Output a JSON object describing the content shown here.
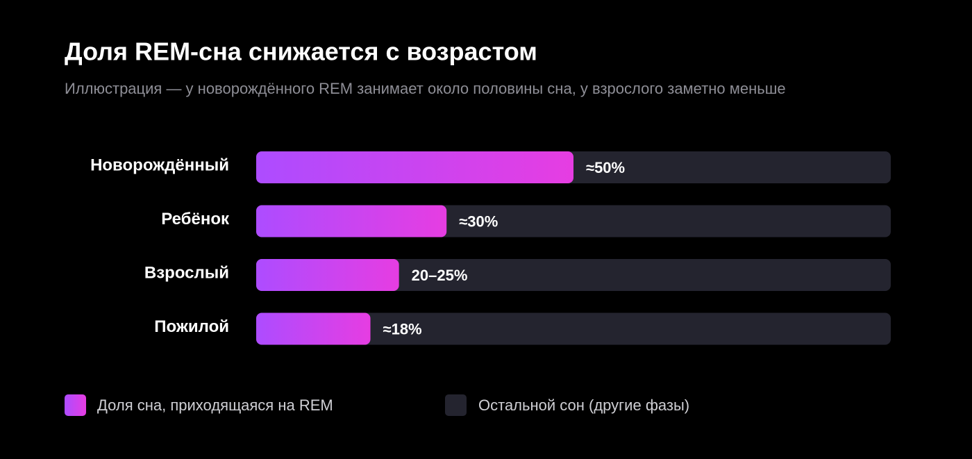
{
  "chart_data": {
    "type": "hbar",
    "title": "Доля REM-сна снижается с возрастом",
    "subtitle": "Иллюстрация — у новорождённого REM занимает около половины сна, у взрослого заметно меньше",
    "categories": [
      "Новорождённый",
      "Ребёнок",
      "Взрослый",
      "Пожилой"
    ],
    "series": [
      {
        "name": "Доля сна, приходящаяся на REM",
        "color": "#ad4cff",
        "color_end": "#e63de2",
        "values": [
          50,
          30,
          22.5,
          18
        ],
        "value_labels": [
          "≈50%",
          "≈30%",
          "20–25%",
          "≈18%"
        ]
      }
    ],
    "background": {
      "name": "Остальной сон (другие фазы)",
      "color": "#24242f"
    },
    "xlim": [
      0,
      100
    ]
  }
}
